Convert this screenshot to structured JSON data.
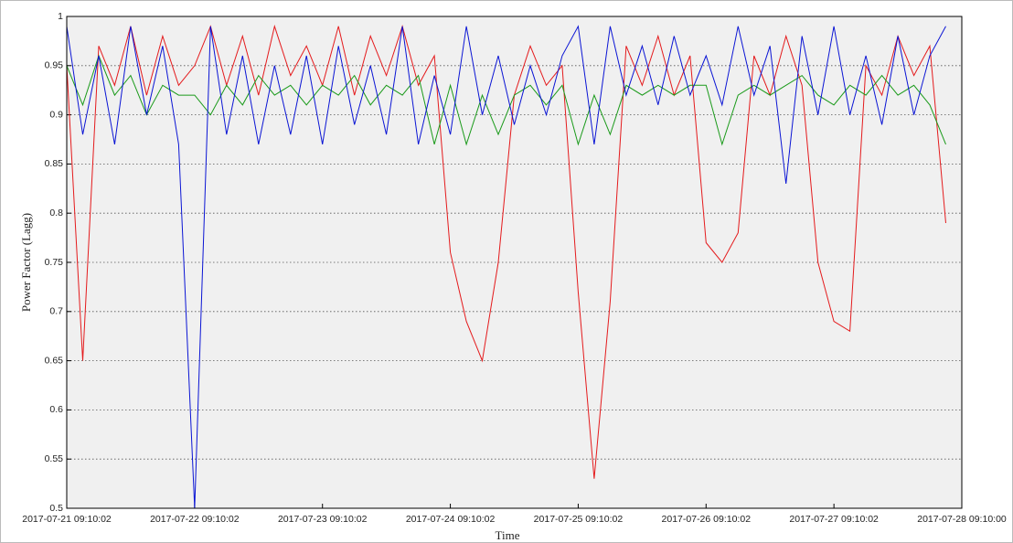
{
  "chart_data": {
    "type": "line",
    "xlabel": "Time",
    "ylabel": "Power Factor (Lagg)",
    "x": [
      "2017-07-21 09:10:02",
      "2017-07-21 12:10:02",
      "2017-07-21 15:10:02",
      "2017-07-21 18:10:02",
      "2017-07-21 21:10:02",
      "2017-07-22 00:10:02",
      "2017-07-22 03:10:02",
      "2017-07-22 06:10:02",
      "2017-07-22 09:10:02",
      "2017-07-22 12:10:02",
      "2017-07-22 15:10:02",
      "2017-07-22 18:10:02",
      "2017-07-22 21:10:02",
      "2017-07-23 00:10:02",
      "2017-07-23 03:10:02",
      "2017-07-23 06:10:02",
      "2017-07-23 09:10:02",
      "2017-07-23 12:10:02",
      "2017-07-23 15:10:02",
      "2017-07-23 18:10:02",
      "2017-07-23 21:10:02",
      "2017-07-24 00:10:02",
      "2017-07-24 03:10:02",
      "2017-07-24 06:10:02",
      "2017-07-24 09:10:02",
      "2017-07-24 12:10:02",
      "2017-07-24 15:10:02",
      "2017-07-24 18:10:02",
      "2017-07-24 21:10:02",
      "2017-07-25 00:10:02",
      "2017-07-25 03:10:02",
      "2017-07-25 06:10:02",
      "2017-07-25 09:10:02",
      "2017-07-25 12:10:02",
      "2017-07-25 15:10:02",
      "2017-07-25 18:10:02",
      "2017-07-25 21:10:02",
      "2017-07-26 00:10:02",
      "2017-07-26 03:10:02",
      "2017-07-26 06:10:02",
      "2017-07-26 09:10:02",
      "2017-07-26 12:10:02",
      "2017-07-26 15:10:02",
      "2017-07-26 18:10:02",
      "2017-07-26 21:10:02",
      "2017-07-27 00:10:02",
      "2017-07-27 03:10:02",
      "2017-07-27 06:10:02",
      "2017-07-27 09:10:02",
      "2017-07-27 12:10:02",
      "2017-07-27 15:10:02",
      "2017-07-27 18:10:02",
      "2017-07-27 21:10:02",
      "2017-07-28 00:10:02",
      "2017-07-28 03:10:02",
      "2017-07-28 06:10:02"
    ],
    "series": [
      {
        "color": "#e41a1c",
        "values": [
          0.95,
          0.65,
          0.97,
          0.93,
          0.99,
          0.92,
          0.98,
          0.93,
          0.95,
          0.99,
          0.93,
          0.98,
          0.92,
          0.99,
          0.94,
          0.97,
          0.93,
          0.99,
          0.92,
          0.98,
          0.94,
          0.99,
          0.93,
          0.96,
          0.76,
          0.69,
          0.65,
          0.75,
          0.92,
          0.97,
          0.93,
          0.95,
          0.72,
          0.53,
          0.71,
          0.97,
          0.93,
          0.98,
          0.92,
          0.96,
          0.77,
          0.75,
          0.78,
          0.96,
          0.92,
          0.98,
          0.93,
          0.75,
          0.69,
          0.68,
          0.95,
          0.92,
          0.98,
          0.94,
          0.97,
          0.79
        ]
      },
      {
        "color": "#1a9a1a",
        "values": [
          0.95,
          0.91,
          0.96,
          0.92,
          0.94,
          0.9,
          0.93,
          0.92,
          0.92,
          0.9,
          0.93,
          0.91,
          0.94,
          0.92,
          0.93,
          0.91,
          0.93,
          0.92,
          0.94,
          0.91,
          0.93,
          0.92,
          0.94,
          0.87,
          0.93,
          0.87,
          0.92,
          0.88,
          0.92,
          0.93,
          0.91,
          0.93,
          0.87,
          0.92,
          0.88,
          0.93,
          0.92,
          0.93,
          0.92,
          0.93,
          0.93,
          0.87,
          0.92,
          0.93,
          0.92,
          0.93,
          0.94,
          0.92,
          0.91,
          0.93,
          0.92,
          0.94,
          0.92,
          0.93,
          0.91,
          0.87
        ]
      },
      {
        "color": "#0a14d4",
        "values": [
          0.99,
          0.88,
          0.96,
          0.87,
          0.99,
          0.9,
          0.97,
          0.87,
          0.5,
          0.99,
          0.88,
          0.96,
          0.87,
          0.95,
          0.88,
          0.96,
          0.87,
          0.97,
          0.89,
          0.95,
          0.88,
          0.99,
          0.87,
          0.94,
          0.88,
          0.99,
          0.9,
          0.96,
          0.89,
          0.95,
          0.9,
          0.96,
          0.99,
          0.87,
          0.99,
          0.92,
          0.97,
          0.91,
          0.98,
          0.92,
          0.96,
          0.91,
          0.99,
          0.92,
          0.97,
          0.83,
          0.98,
          0.9,
          0.99,
          0.9,
          0.96,
          0.89,
          0.98,
          0.9,
          0.96,
          0.99
        ]
      }
    ],
    "xlim": [
      "2017-07-21 09:10:02",
      "2017-07-28 09:10:00"
    ],
    "xticks": [
      "2017-07-21 09:10:02",
      "2017-07-22 09:10:02",
      "2017-07-23 09:10:02",
      "2017-07-24 09:10:02",
      "2017-07-25 09:10:02",
      "2017-07-26 09:10:02",
      "2017-07-27 09:10:02",
      "2017-07-28 09:10:00"
    ],
    "ylim": [
      0.5,
      1
    ],
    "yticks": [
      0.5,
      0.55,
      0.6,
      0.65,
      0.7,
      0.75,
      0.8,
      0.85,
      0.9,
      0.95,
      1
    ],
    "grid": true
  }
}
